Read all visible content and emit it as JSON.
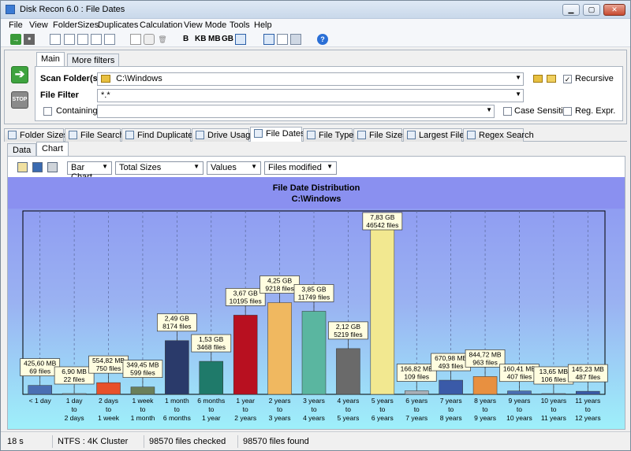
{
  "window": {
    "title": "Disk Recon 6.0 : File Dates",
    "min": "▁",
    "max": "▢",
    "close": "✕"
  },
  "menu": [
    "File",
    "View",
    "FolderSizes",
    "Duplicates",
    "Calculation",
    "View Mode",
    "Tools",
    "Help"
  ],
  "toolbar": {
    "units": [
      "B",
      "KB",
      "MB",
      "GB"
    ]
  },
  "scan": {
    "tabs": [
      "Main",
      "More filters"
    ],
    "scan_folder_label": "Scan Folder(s)",
    "scan_folder_value": "C:\\Windows",
    "recursive_label": "Recursive",
    "recursive_checked": true,
    "file_filter_label": "File Filter",
    "file_filter_value": "*.*",
    "containing_label": "Containing",
    "containing_value": "",
    "case_sensitive_label": "Case Sensitive",
    "reg_expr_label": "Reg. Expr.",
    "go_icon": "arrow-right-icon",
    "stop_label": "STOP"
  },
  "feature_tabs": [
    "Folder Sizes",
    "File Search",
    "Find Duplicates",
    "Drive Usage",
    "File Dates",
    "File Types",
    "File Sizes",
    "Largest Files",
    "Regex Search"
  ],
  "active_feature_tab": "File Dates",
  "view_tabs": [
    "Data",
    "Chart"
  ],
  "active_view_tab": "Chart",
  "chart_controls": {
    "chart_type": "Bar Chart",
    "measure": "Total Sizes",
    "display": "Values",
    "mode": "Files modified"
  },
  "chart_data": {
    "type": "bar",
    "title": "File Date Distribution",
    "subtitle": "C:\\Windows",
    "categories": [
      "< 1 day",
      "1 day to 2 days",
      "2 days to 1 week",
      "1 week to 1 month",
      "1 month to 6 months",
      "6 months to 1 year",
      "1 year to 2 years",
      "2 years to 3 years",
      "3 years to 4 years",
      "4 years to 5 years",
      "5 years to 6 years",
      "6 years to 7 years",
      "7 years to 8 years",
      "8 years to 9 years",
      "9 years to 10 years",
      "10 years to 11 years",
      "11 years to 12 years"
    ],
    "category_lines": [
      [
        "< 1 day"
      ],
      [
        "1 day",
        "to",
        "2 days"
      ],
      [
        "2 days",
        "to",
        "1 week"
      ],
      [
        "1 week",
        "to",
        "1 month"
      ],
      [
        "1 month",
        "to",
        "6 months"
      ],
      [
        "6 months",
        "to",
        "1 year"
      ],
      [
        "1 year",
        "to",
        "2 years"
      ],
      [
        "2 years",
        "to",
        "3 years"
      ],
      [
        "3 years",
        "to",
        "4 years"
      ],
      [
        "4 years",
        "to",
        "5 years"
      ],
      [
        "5 years",
        "to",
        "6 years"
      ],
      [
        "6 years",
        "to",
        "7 years"
      ],
      [
        "7 years",
        "to",
        "8 years"
      ],
      [
        "8 years",
        "to",
        "9 years"
      ],
      [
        "9 years",
        "to",
        "10 years"
      ],
      [
        "10 years",
        "to",
        "11 years"
      ],
      [
        "11 years",
        "to",
        "12 years"
      ]
    ],
    "values_gb": [
      0.4156,
      0.00674,
      0.5418,
      0.3413,
      2.49,
      1.53,
      3.67,
      4.25,
      3.85,
      2.12,
      7.83,
      0.1628,
      0.6553,
      0.8249,
      0.1567,
      0.01333,
      0.1418
    ],
    "size_labels": [
      "425,60 MB",
      "6,90 MB",
      "554,82 MB",
      "349,45 MB",
      "2,49 GB",
      "1,53 GB",
      "3,67 GB",
      "4,25 GB",
      "3,85 GB",
      "2,12 GB",
      "7,83 GB",
      "166,82 MB",
      "670,98 MB",
      "844,72 MB",
      "160,41 MB",
      "13,65 MB",
      "145,23 MB"
    ],
    "file_counts": [
      "69 files",
      "22 files",
      "750 files",
      "599 files",
      "8174 files",
      "3468 files",
      "10195 files",
      "9218 files",
      "11749 files",
      "5219 files",
      "46542 files",
      "109 files",
      "493 files",
      "963 files",
      "407 files",
      "106 files",
      "487 files"
    ],
    "colors": [
      "#4a6fb3",
      "#9aa0aa",
      "#e8502a",
      "#6a7f5a",
      "#2a3a6a",
      "#1f7a6a",
      "#b81020",
      "#f0b860",
      "#5ab6a0",
      "#6a6a6a",
      "#f2e890",
      "#aab0b8",
      "#3a5aa8",
      "#e89040",
      "#4a6fb3",
      "#6a7090",
      "#3a5aa8"
    ],
    "ylim": [
      0,
      8.5
    ],
    "grid": "vertical"
  },
  "status": {
    "time": "18 s",
    "fs": "NTFS : 4K Cluster",
    "checked": "98570 files checked",
    "found": "98570 files found"
  }
}
